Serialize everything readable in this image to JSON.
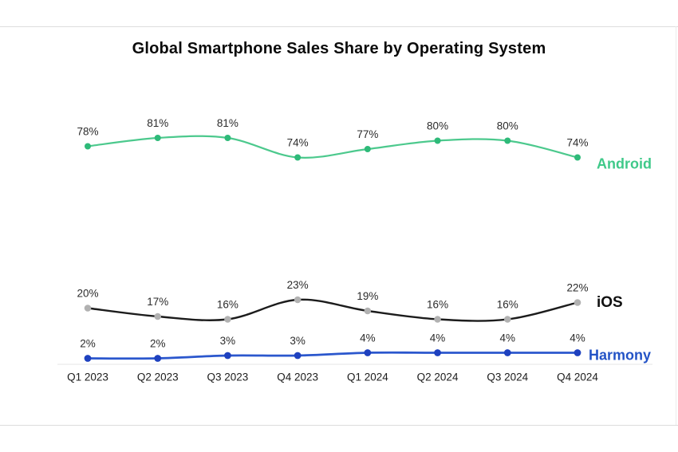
{
  "chart_data": {
    "type": "line",
    "title": "Global Smartphone Sales Share by Operating System",
    "categories": [
      "Q1 2023",
      "Q2 2023",
      "Q3 2023",
      "Q4 2023",
      "Q1 2024",
      "Q2 2024",
      "Q3 2024",
      "Q4 2024"
    ],
    "series": [
      {
        "name": "Android",
        "values": [
          78,
          81,
          81,
          74,
          77,
          80,
          80,
          74
        ],
        "line_color": "#4cc98d",
        "marker_color": "#2eba79",
        "label_color": "#3fc989"
      },
      {
        "name": "iOS",
        "values": [
          20,
          17,
          16,
          23,
          19,
          16,
          16,
          22
        ],
        "line_color": "#1c1c1c",
        "marker_color": "#b1b1b1",
        "label_color": "#101010"
      },
      {
        "name": "Harmony",
        "values": [
          2,
          2,
          3,
          3,
          4,
          4,
          4,
          4
        ],
        "line_color": "#2b57cd",
        "marker_color": "#1e41bf",
        "label_color": "#2353c6"
      }
    ],
    "data_label_suffix": "%",
    "xlabel": "",
    "ylabel": "",
    "ylim": [
      0,
      100
    ],
    "grid": false,
    "legend_position": "end-of-line",
    "colors": {
      "background": "#ffffff",
      "data_label": "#2b2b2b",
      "tick_label": "#1c1c1c",
      "axis_line": "#e4e4e4",
      "divider": "#dedede"
    }
  }
}
